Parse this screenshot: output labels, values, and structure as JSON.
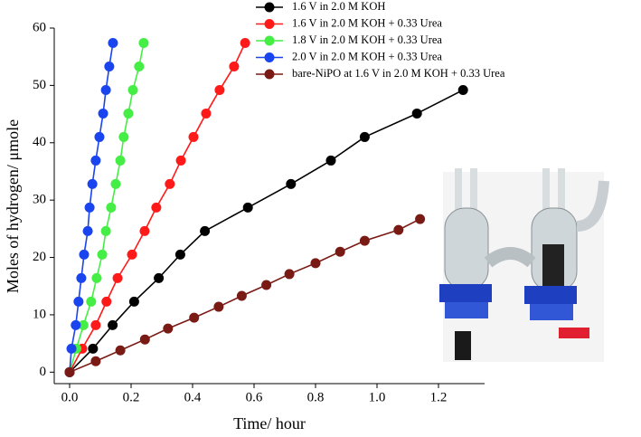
{
  "chart_data": {
    "type": "line",
    "xlabel": "Time/ hour",
    "ylabel": "Moles of hydrogen/ μmole",
    "xlim": [
      -0.05,
      1.35
    ],
    "ylim": [
      -2,
      60
    ],
    "xticks": [
      {
        "value": 0,
        "label": "0.0"
      },
      0.2,
      0.4,
      0.6,
      0.8,
      {
        "value": 1,
        "label": "1.0"
      },
      1.2
    ],
    "yticks": [
      0,
      10,
      20,
      30,
      40,
      50,
      60
    ],
    "legend": "top-right",
    "series": [
      {
        "name": "1.6 V in 2.0 M KOH",
        "color": "#000000",
        "x": [
          0,
          0.076,
          0.14,
          0.21,
          0.29,
          0.36,
          0.44,
          0.58,
          0.72,
          0.85,
          0.96,
          1.13,
          1.28
        ],
        "values": [
          0,
          4.1,
          8.2,
          12.3,
          16.4,
          20.5,
          24.6,
          28.7,
          32.8,
          36.9,
          41,
          45.1,
          49.2
        ]
      },
      {
        "name": "1.6 V in 2.0 M KOH + 0.33 Urea",
        "color": "#ff1a1a",
        "x": [
          0,
          0.041,
          0.085,
          0.12,
          0.156,
          0.203,
          0.244,
          0.282,
          0.326,
          0.362,
          0.403,
          0.444,
          0.488,
          0.535,
          0.571
        ],
        "values": [
          0,
          4.1,
          8.2,
          12.3,
          16.4,
          20.5,
          24.6,
          28.7,
          32.8,
          36.9,
          41,
          45.1,
          49.2,
          53.3,
          57.4
        ]
      },
      {
        "name": "1.8 V in 2.0 M KOH + 0.33 Urea",
        "color": "#44ee44",
        "x": [
          0,
          0.022,
          0.045,
          0.07,
          0.088,
          0.106,
          0.118,
          0.135,
          0.15,
          0.165,
          0.176,
          0.191,
          0.206,
          0.226,
          0.241
        ],
        "values": [
          0,
          4.1,
          8.2,
          12.3,
          16.4,
          20.5,
          24.6,
          28.7,
          32.8,
          36.9,
          41,
          45.1,
          49.2,
          53.3,
          57.4
        ]
      },
      {
        "name": "2.0 V in 2.0 M KOH + 0.33 Urea",
        "color": "#1a44ee",
        "x": [
          0,
          0.006,
          0.02,
          0.029,
          0.038,
          0.047,
          0.059,
          0.065,
          0.074,
          0.085,
          0.097,
          0.109,
          0.118,
          0.129,
          0.141
        ],
        "values": [
          0,
          4.1,
          8.2,
          12.3,
          16.4,
          20.5,
          24.6,
          28.7,
          32.8,
          36.9,
          41,
          45.1,
          49.2,
          53.3,
          57.4
        ]
      },
      {
        "name": "bare-NiPO at 1.6 V in 2.0 M KOH + 0.33 Urea",
        "color": "#7a1a14",
        "x": [
          0,
          0.085,
          0.165,
          0.245,
          0.32,
          0.405,
          0.485,
          0.56,
          0.64,
          0.715,
          0.8,
          0.88,
          0.96,
          1.07,
          1.14
        ],
        "values": [
          0,
          1.9,
          3.8,
          5.7,
          7.6,
          9.5,
          11.4,
          13.3,
          15.2,
          17.1,
          19,
          21,
          22.9,
          24.8,
          26.7
        ]
      }
    ]
  }
}
